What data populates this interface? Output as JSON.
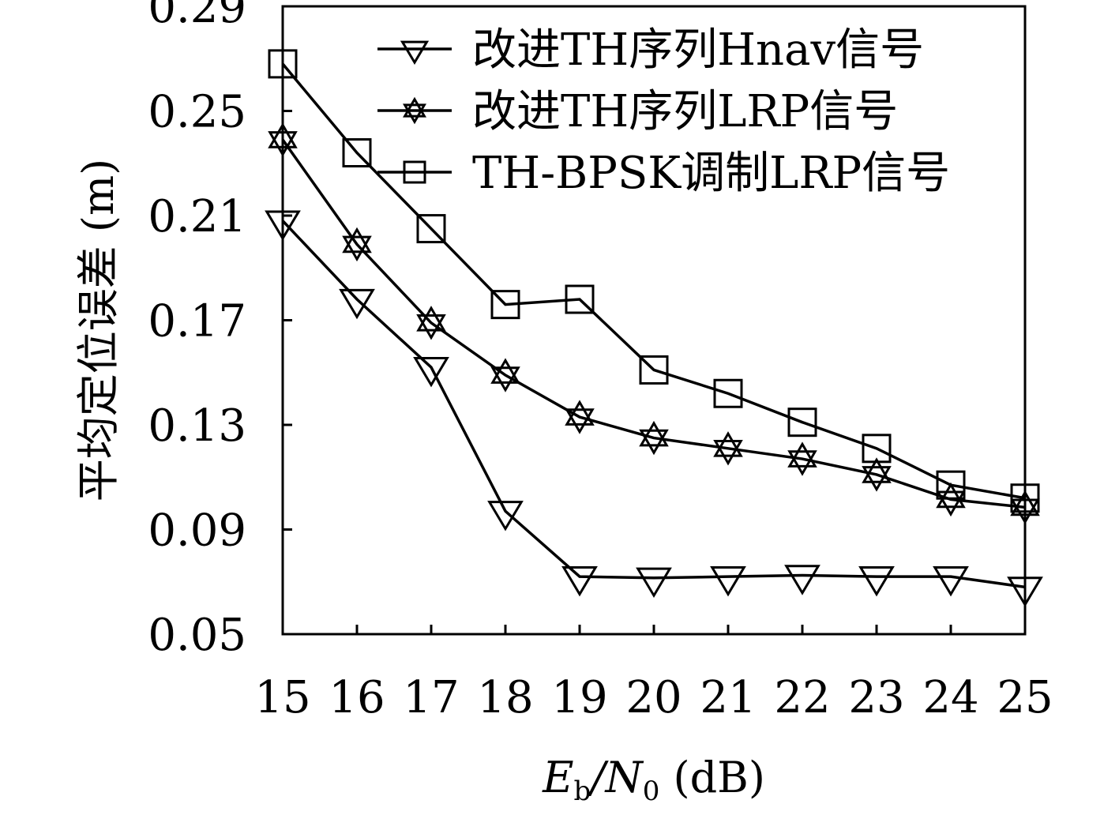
{
  "chart_data": {
    "type": "line",
    "title": "",
    "xlabel": {
      "main": "E",
      "sub1": "b",
      "slash": "/N",
      "sub2": "0",
      "unit": " (dB)"
    },
    "ylabel": "平均定位误差 (m)",
    "x": [
      15,
      16,
      17,
      18,
      19,
      20,
      21,
      22,
      23,
      24,
      25
    ],
    "xticks": [
      "15",
      "16",
      "17",
      "18",
      "19",
      "20",
      "21",
      "22",
      "23",
      "24",
      "25"
    ],
    "yticks": [
      "0.05",
      "0.09",
      "0.13",
      "0.17",
      "0.21",
      "0.25",
      "0.29"
    ],
    "ytick_values": [
      0.05,
      0.09,
      0.13,
      0.17,
      0.21,
      0.25,
      0.29
    ],
    "xlim": [
      15,
      25
    ],
    "ylim": [
      0.05,
      0.29
    ],
    "grid": false,
    "legend_position": "top-right",
    "series": [
      {
        "name": "改进TH序列Hnav信号",
        "marker": "triangle-down",
        "values": [
          0.208,
          0.178,
          0.152,
          0.097,
          0.072,
          0.0715,
          0.072,
          0.0725,
          0.072,
          0.072,
          0.068
        ]
      },
      {
        "name": "改进TH序列LRP信号",
        "marker": "hexagram",
        "values": [
          0.239,
          0.199,
          0.169,
          0.149,
          0.133,
          0.125,
          0.121,
          0.117,
          0.111,
          0.1015,
          0.0985
        ]
      },
      {
        "name": "TH-BPSK调制LRP信号",
        "marker": "square",
        "values": [
          0.268,
          0.234,
          0.205,
          0.176,
          0.178,
          0.151,
          0.142,
          0.131,
          0.121,
          0.107,
          0.102
        ]
      }
    ]
  }
}
